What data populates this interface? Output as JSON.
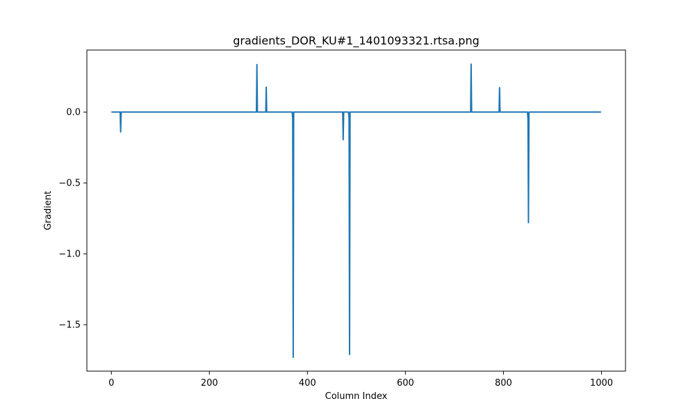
{
  "chart_data": {
    "type": "line",
    "title": "gradients_DOR_KU#1_1401093321.rtsa.png",
    "xlabel": "Column Index",
    "ylabel": "Gradient",
    "xlim": [
      -49.95,
      1048.95
    ],
    "ylim": [
      -1.8275,
      0.4375
    ],
    "x_ticks": [
      0,
      200,
      400,
      600,
      800,
      1000
    ],
    "x_tick_labels": [
      "0",
      "200",
      "400",
      "600",
      "800",
      "1000"
    ],
    "y_ticks": [
      0.0,
      -0.5,
      -1.0,
      -1.5
    ],
    "y_tick_labels": [
      "0.0",
      "−0.5",
      "−1.0",
      "−1.5"
    ],
    "grid": false,
    "series": [
      {
        "color": "#1f77b4",
        "x": [
          0,
          18,
          19,
          20,
          296,
          297,
          298,
          315,
          316,
          317,
          369,
          370,
          371,
          372,
          472,
          473,
          474,
          484,
          485,
          486,
          487,
          733,
          734,
          735,
          791,
          792,
          793,
          849,
          850,
          851,
          852,
          999
        ],
        "y": [
          0,
          0,
          -0.14,
          0,
          0,
          0.335,
          0,
          0,
          0.175,
          0,
          0,
          -0.05,
          -1.73,
          0,
          0,
          -0.195,
          0,
          0,
          -0.05,
          -1.71,
          0,
          0,
          0.338,
          0,
          0,
          0.172,
          0,
          0,
          -0.05,
          -0.78,
          0,
          0
        ]
      }
    ]
  }
}
